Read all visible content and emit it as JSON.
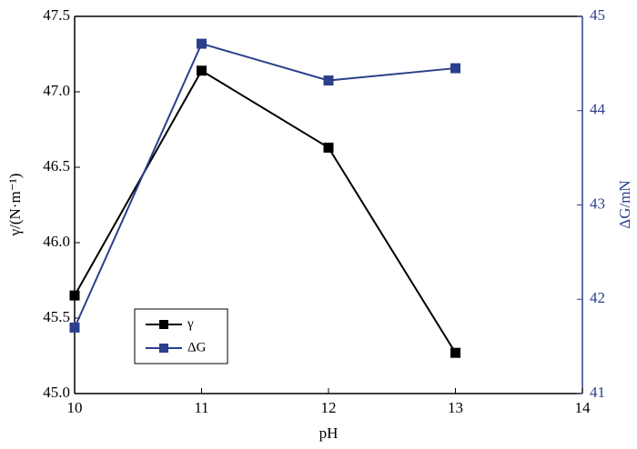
{
  "chart_data": {
    "type": "line",
    "x_label": "pH",
    "y_label": "γ/(N·m⁻¹)",
    "y2_label": "ΔG/mN",
    "x": [
      10,
      11,
      12,
      13
    ],
    "series": [
      {
        "name": "γ",
        "color": "#000000",
        "values": [
          45.65,
          47.14,
          46.63,
          45.27
        ]
      },
      {
        "name": "ΔG",
        "color": "#2b3f8c",
        "axis": "y2",
        "values": [
          41.7,
          44.71,
          44.32,
          44.45
        ]
      }
    ],
    "xlim": [
      10,
      14
    ],
    "xticks": [
      10,
      11,
      12,
      13,
      14
    ],
    "ylim": [
      45,
      47.5
    ],
    "yticks": [
      {
        "value": 45,
        "label": "45.0"
      },
      {
        "value": 45.5,
        "label": "45.5"
      },
      {
        "value": 46,
        "label": "46.0"
      },
      {
        "value": 46.5,
        "label": "46.5"
      },
      {
        "value": 47,
        "label": "47.0"
      },
      {
        "value": 47.5,
        "label": "47.5"
      }
    ],
    "y2lim": [
      41,
      45
    ],
    "y2ticks": [
      41,
      42,
      43,
      44,
      45
    ],
    "legend": "lower left"
  }
}
